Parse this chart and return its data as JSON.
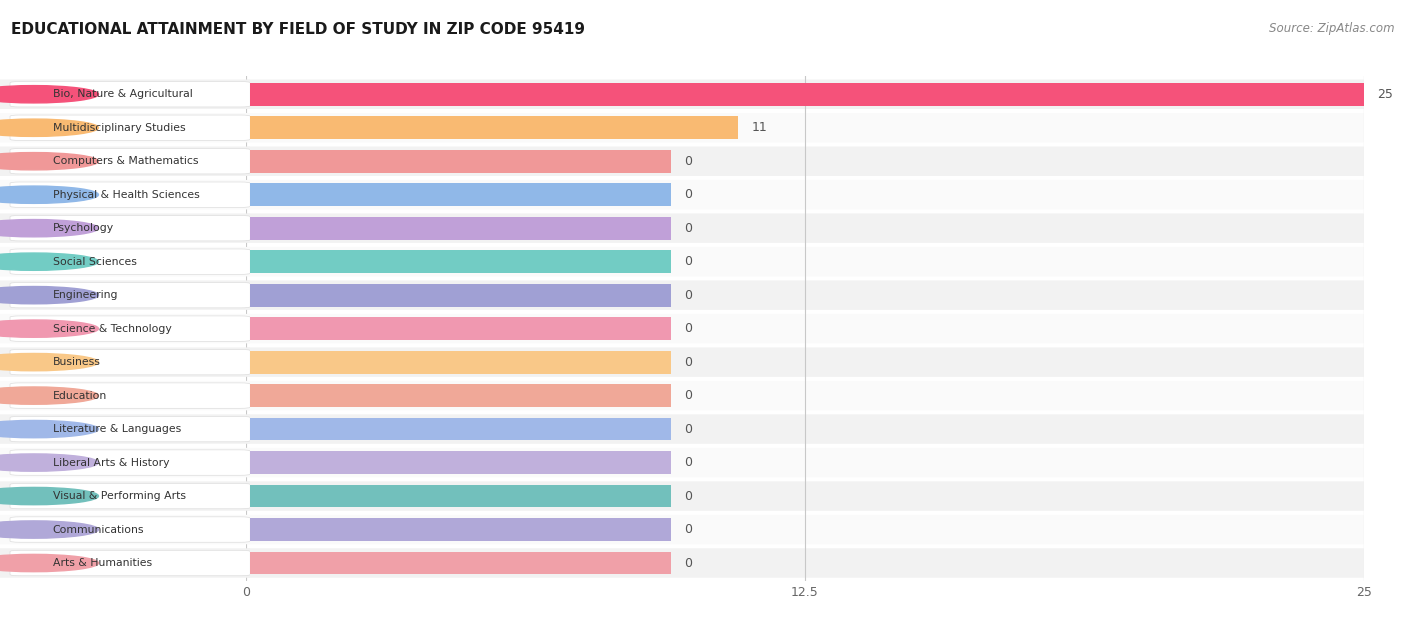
{
  "title": "EDUCATIONAL ATTAINMENT BY FIELD OF STUDY IN ZIP CODE 95419",
  "source": "Source: ZipAtlas.com",
  "categories": [
    "Bio, Nature & Agricultural",
    "Multidisciplinary Studies",
    "Computers & Mathematics",
    "Physical & Health Sciences",
    "Psychology",
    "Social Sciences",
    "Engineering",
    "Science & Technology",
    "Business",
    "Education",
    "Literature & Languages",
    "Liberal Arts & History",
    "Visual & Performing Arts",
    "Communications",
    "Arts & Humanities"
  ],
  "values": [
    25,
    11,
    0,
    0,
    0,
    0,
    0,
    0,
    0,
    0,
    0,
    0,
    0,
    0,
    0
  ],
  "bar_colors": [
    "#F5527A",
    "#F9BA72",
    "#F09898",
    "#90B8E8",
    "#C0A0D8",
    "#72CCC4",
    "#A0A0D4",
    "#F098B0",
    "#F9C888",
    "#F0A898",
    "#A0B8E8",
    "#C0B0DC",
    "#72C0BC",
    "#B0A8D8",
    "#F0A0A8"
  ],
  "zero_bar_width": 9.5,
  "xlim": [
    0,
    25
  ],
  "xticks": [
    0,
    12.5,
    25
  ],
  "background_color": "#FFFFFF",
  "row_bg_even": "#F2F2F2",
  "row_bg_odd": "#FAFAFA",
  "title_fontsize": 11,
  "source_fontsize": 8.5,
  "bar_height": 0.68,
  "label_fontsize": 9
}
